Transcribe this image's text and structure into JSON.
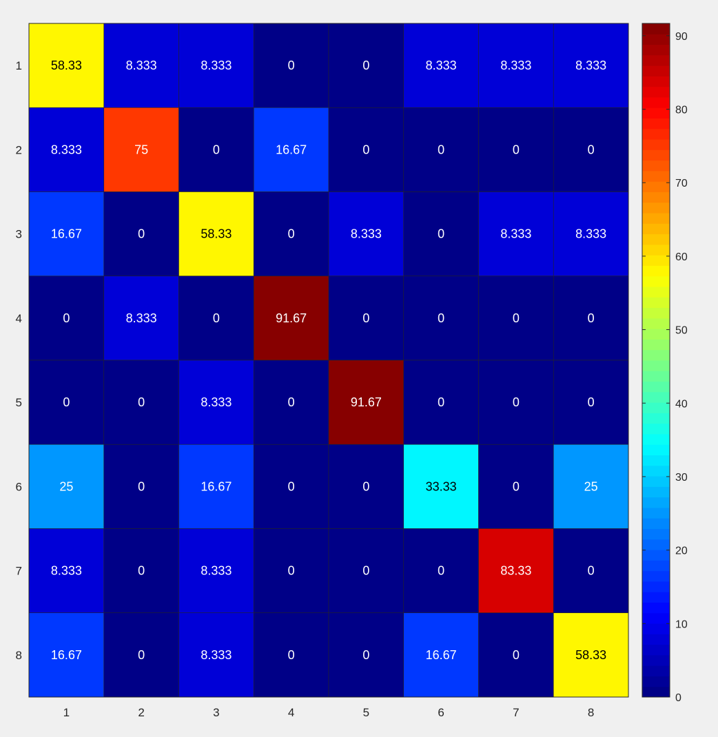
{
  "chart_data": {
    "type": "heatmap",
    "title": "",
    "xlabel": "",
    "ylabel": "",
    "x_categories": [
      "1",
      "2",
      "3",
      "4",
      "5",
      "6",
      "7",
      "8"
    ],
    "y_categories": [
      "1",
      "2",
      "3",
      "4",
      "5",
      "6",
      "7",
      "8"
    ],
    "values": [
      [
        58.33,
        8.333,
        8.333,
        0,
        0,
        8.333,
        8.333,
        8.333
      ],
      [
        8.333,
        75,
        0,
        16.67,
        0,
        0,
        0,
        0
      ],
      [
        16.67,
        0,
        58.33,
        0,
        8.333,
        0,
        8.333,
        8.333
      ],
      [
        0,
        8.333,
        0,
        91.67,
        0,
        0,
        0,
        0
      ],
      [
        0,
        0,
        8.333,
        0,
        91.67,
        0,
        0,
        0
      ],
      [
        25,
        0,
        16.67,
        0,
        0,
        33.33,
        0,
        25
      ],
      [
        8.333,
        0,
        8.333,
        0,
        0,
        0,
        83.33,
        0
      ],
      [
        16.67,
        0,
        8.333,
        0,
        0,
        16.67,
        0,
        58.33
      ]
    ],
    "cell_labels": [
      [
        "58.33",
        "8.333",
        "8.333",
        "0",
        "0",
        "8.333",
        "8.333",
        "8.333"
      ],
      [
        "8.333",
        "75",
        "0",
        "16.67",
        "0",
        "0",
        "0",
        "0"
      ],
      [
        "16.67",
        "0",
        "58.33",
        "0",
        "8.333",
        "0",
        "8.333",
        "8.333"
      ],
      [
        "0",
        "8.333",
        "0",
        "91.67",
        "0",
        "0",
        "0",
        "0"
      ],
      [
        "0",
        "0",
        "8.333",
        "0",
        "91.67",
        "0",
        "0",
        "0"
      ],
      [
        "25",
        "0",
        "16.67",
        "0",
        "0",
        "33.33",
        "0",
        "25"
      ],
      [
        "8.333",
        "0",
        "8.333",
        "0",
        "0",
        "0",
        "83.33",
        "0"
      ],
      [
        "16.67",
        "0",
        "8.333",
        "0",
        "0",
        "16.67",
        "0",
        "58.33"
      ]
    ],
    "colormap": "jet",
    "color_range": [
      0,
      91.67
    ],
    "colorbar": {
      "position": "right",
      "ticks": [
        0,
        10,
        20,
        30,
        40,
        50,
        60,
        70,
        80,
        90
      ],
      "tick_labels": [
        "0",
        "10",
        "20",
        "30",
        "40",
        "50",
        "60",
        "70",
        "80",
        "90"
      ]
    },
    "grid": true
  },
  "colors": {
    "background": "#f0f0f0",
    "grid_line": "#262626",
    "text_dark": "#000000",
    "text_light": "#ffffff"
  }
}
